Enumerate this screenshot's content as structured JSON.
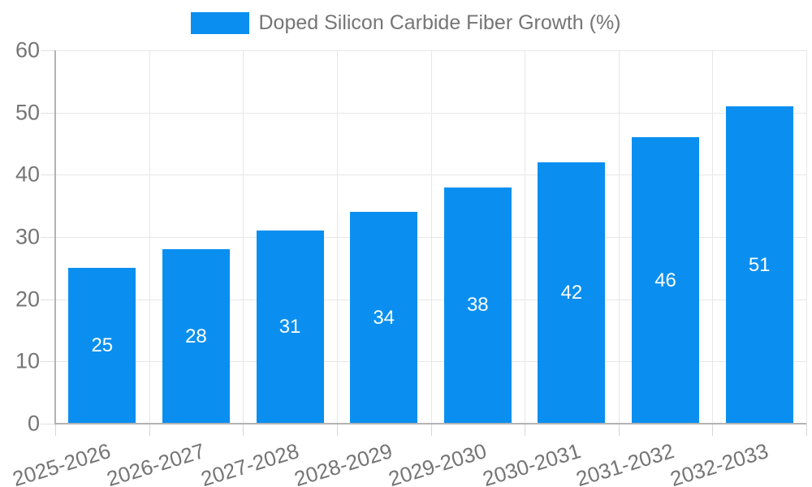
{
  "chart_data": {
    "type": "bar",
    "title": "",
    "xlabel": "",
    "ylabel": "",
    "categories": [
      "2025-2026",
      "2026-2027",
      "2027-2028",
      "2028-2029",
      "2029-2030",
      "2030-2031",
      "2031-2032",
      "2032-2033"
    ],
    "series": [
      {
        "name": "Doped Silicon Carbide Fiber Growth (%)",
        "values": [
          25,
          28,
          31,
          34,
          38,
          42,
          46,
          51
        ]
      }
    ],
    "ylim": [
      0,
      60
    ],
    "yticks": [
      0,
      10,
      20,
      30,
      40,
      50,
      60
    ],
    "grid": true,
    "legend_position": "top",
    "value_label_position": "inside-center",
    "bar_color": "#0a8ff0",
    "value_label_color": "#ffffff"
  },
  "colors": {
    "accent": "#0a8ff0",
    "gridline": "#e7e7e7",
    "axis": "#b3b3b3",
    "text_muted": "#757575",
    "background": "#ffffff"
  }
}
